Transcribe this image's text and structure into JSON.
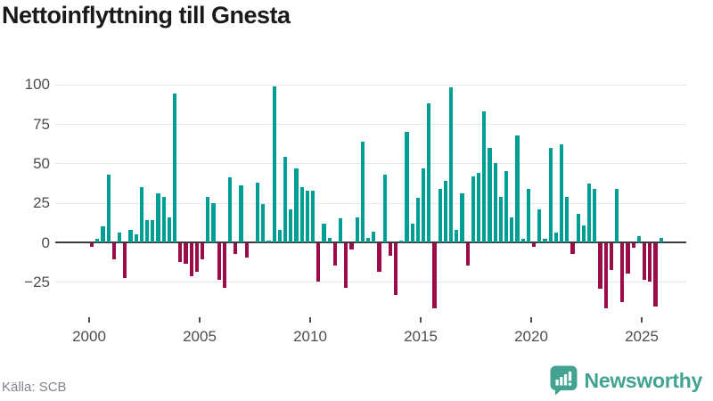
{
  "title": "Nettoinflyttning till Gnesta",
  "source": "Källa: SCB",
  "brand": {
    "name": "Newsworthy",
    "icon": "bar-chart-speech-bubble-icon"
  },
  "colors": {
    "positive_bar": "#009e95",
    "negative_bar": "#9b0c4a",
    "grid": "#e7e7e7",
    "zero_line": "#3a3a3a",
    "axis_text": "#4d4d4d",
    "title_text": "#1a1a1a",
    "source_text": "#83838d",
    "brand_teal": "#42a391",
    "background": "#ffffff"
  },
  "chart_data": {
    "type": "bar",
    "title": "Nettoinflyttning till Gnesta",
    "series_name": "Nettoinflyttning per kvartal",
    "x_unit": "quarter",
    "start_year": 2000,
    "x_tick_years": [
      2000,
      2005,
      2010,
      2015,
      2020,
      2025
    ],
    "x_tick_labels": [
      "2000",
      "2005",
      "2010",
      "2015",
      "2020",
      "2025"
    ],
    "y_ticks": [
      100,
      75,
      50,
      25,
      0,
      -25
    ],
    "y_tick_labels": [
      "100",
      "75",
      "50",
      "25",
      "0",
      "−25"
    ],
    "ylim": [
      -45,
      107
    ],
    "grid": "horizontal",
    "legend": "none",
    "values": [
      -2,
      2,
      10,
      43,
      -10,
      6,
      -22,
      8,
      5,
      35,
      14,
      14,
      31,
      29,
      16,
      94,
      -12,
      -13,
      -21,
      -18,
      -10,
      29,
      25,
      -23,
      -28,
      41,
      -7,
      36,
      -9,
      0,
      38,
      24,
      1,
      99,
      8,
      54,
      21,
      47,
      35,
      33,
      33,
      -24,
      12,
      3,
      -14,
      15,
      -28,
      -4,
      16,
      64,
      3,
      7,
      -18,
      43,
      -8,
      -33,
      1,
      70,
      12,
      28,
      47,
      88,
      -41,
      34,
      39,
      98,
      8,
      31,
      -14,
      42,
      44,
      83,
      60,
      50,
      29,
      45,
      16,
      68,
      2,
      34,
      -2,
      21,
      2,
      60,
      6,
      62,
      29,
      -7,
      18,
      11,
      37,
      34,
      -29,
      -41,
      -17,
      34,
      -37,
      -19,
      -3,
      4,
      -23,
      -24,
      -40,
      3
    ]
  }
}
